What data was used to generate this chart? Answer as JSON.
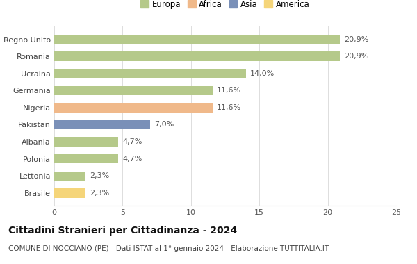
{
  "categories": [
    "Brasile",
    "Lettonia",
    "Polonia",
    "Albania",
    "Pakistan",
    "Nigeria",
    "Germania",
    "Ucraina",
    "Romania",
    "Regno Unito"
  ],
  "values": [
    2.3,
    2.3,
    4.7,
    4.7,
    7.0,
    11.6,
    11.6,
    14.0,
    20.9,
    20.9
  ],
  "labels": [
    "2,3%",
    "2,3%",
    "4,7%",
    "4,7%",
    "7,0%",
    "11,6%",
    "11,6%",
    "14,0%",
    "20,9%",
    "20,9%"
  ],
  "colors": [
    "#f5d57a",
    "#b5c98a",
    "#b5c98a",
    "#b5c98a",
    "#7a90b8",
    "#f0b98a",
    "#b5c98a",
    "#b5c98a",
    "#b5c98a",
    "#b5c98a"
  ],
  "legend": [
    {
      "label": "Europa",
      "color": "#b5c98a"
    },
    {
      "label": "Africa",
      "color": "#f0b98a"
    },
    {
      "label": "Asia",
      "color": "#7a90b8"
    },
    {
      "label": "America",
      "color": "#f5d57a"
    }
  ],
  "xlim": [
    0,
    25
  ],
  "xticks": [
    0,
    5,
    10,
    15,
    20,
    25
  ],
  "title": "Cittadini Stranieri per Cittadinanza - 2024",
  "subtitle": "COMUNE DI NOCCIANO (PE) - Dati ISTAT al 1° gennaio 2024 - Elaborazione TUTTITALIA.IT",
  "bg_color": "#ffffff",
  "bar_height": 0.55,
  "label_fontsize": 8,
  "ytick_fontsize": 8,
  "xtick_fontsize": 8,
  "title_fontsize": 10,
  "subtitle_fontsize": 7.5
}
